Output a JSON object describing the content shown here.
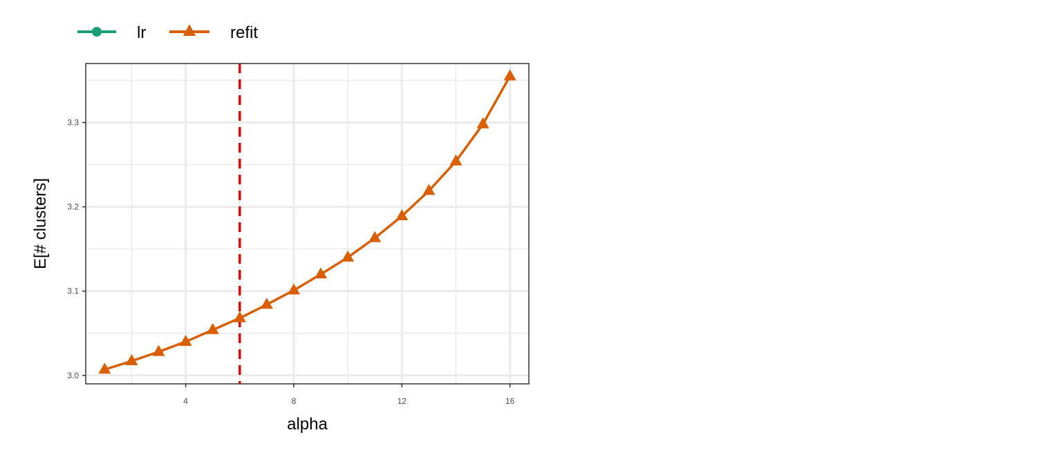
{
  "chart_data": {
    "type": "line",
    "xlabel": "alpha",
    "ylabel": "E[# clusters]",
    "xlim": [
      0.3,
      16.7
    ],
    "ylim": [
      2.99,
      3.37
    ],
    "x_ticks": [
      4,
      8,
      12,
      16
    ],
    "y_ticks": [
      3.0,
      3.1,
      3.2,
      3.3
    ],
    "x_tick_labels": [
      "4",
      "8",
      "12",
      "16"
    ],
    "y_tick_labels": [
      "3.0",
      "3.1",
      "3.2",
      "3.3"
    ],
    "grid": true,
    "legend": {
      "position": "top-left",
      "entries": [
        "lr",
        "refit"
      ]
    },
    "vline": {
      "x": 6,
      "color": "#ee0000",
      "style": "dashed"
    },
    "series": [
      {
        "name": "lr",
        "color": "#1b9e77",
        "marker": "circle",
        "x": [],
        "y": []
      },
      {
        "name": "refit",
        "color": "#d95f02",
        "marker": "triangle",
        "x": [
          1,
          2,
          3,
          4,
          5,
          6,
          7,
          8,
          9,
          10,
          11,
          12,
          13,
          14,
          15,
          16
        ],
        "y": [
          3.007,
          3.017,
          3.028,
          3.04,
          3.054,
          3.068,
          3.084,
          3.101,
          3.12,
          3.14,
          3.163,
          3.189,
          3.219,
          3.254,
          3.298,
          3.355
        ]
      }
    ]
  }
}
